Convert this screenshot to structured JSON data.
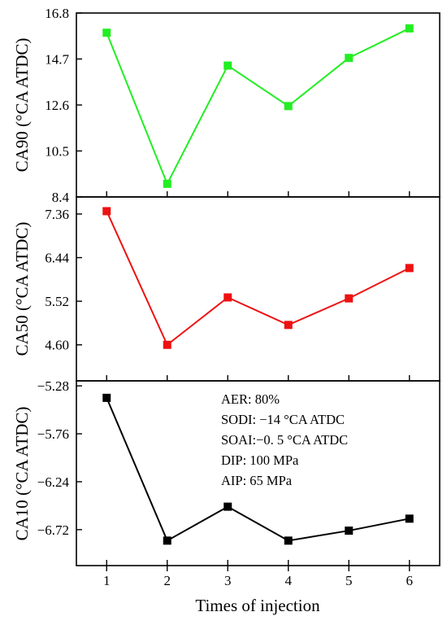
{
  "chart_data": [
    {
      "type": "line",
      "x": [
        1,
        2,
        3,
        4,
        5,
        6
      ],
      "series": [
        {
          "values": [
            15.9,
            9.0,
            14.4,
            12.55,
            14.75,
            16.1
          ]
        }
      ],
      "color": "#22ee22",
      "ylabel": "CA90 (°CA ATDC)",
      "yticks": [
        "8.4",
        "10.5",
        "12.6",
        "14.7",
        "16.8"
      ],
      "ylim": [
        8.4,
        16.8
      ],
      "xlim": [
        0.5,
        6.5
      ]
    },
    {
      "type": "line",
      "x": [
        1,
        2,
        3,
        4,
        5,
        6
      ],
      "series": [
        {
          "values": [
            7.42,
            4.6,
            5.6,
            5.02,
            5.58,
            6.22
          ]
        }
      ],
      "color": "#ee1111",
      "ylabel": "CA50 (°CA ATDC)",
      "yticks": [
        "4.60",
        "5.52",
        "6.44",
        "7.36"
      ],
      "ylim": [
        3.84,
        7.72
      ],
      "xlim": [
        0.5,
        6.5
      ]
    },
    {
      "type": "line",
      "x": [
        1,
        2,
        3,
        4,
        5,
        6
      ],
      "series": [
        {
          "values": [
            -5.4,
            -6.83,
            -6.49,
            -6.83,
            -6.73,
            -6.61
          ]
        }
      ],
      "color": "#000000",
      "ylabel": "CA10 (°CA ATDC)",
      "yticks": [
        "−5.28",
        "−5.76",
        "−6.24",
        "−6.72"
      ],
      "ylim": [
        -7.08,
        -5.23
      ],
      "xlim": [
        0.5,
        6.5
      ],
      "xlabel": "Times of injection",
      "xticks": [
        "1",
        "2",
        "3",
        "4",
        "5",
        "6"
      ],
      "annotations": [
        "AER: 80%",
        "SODI:  −14 °CA ATDC",
        "SOAI:−0. 5 °CA ATDC",
        "DIP: 100 MPa",
        "AIP: 65 MPa"
      ]
    }
  ]
}
